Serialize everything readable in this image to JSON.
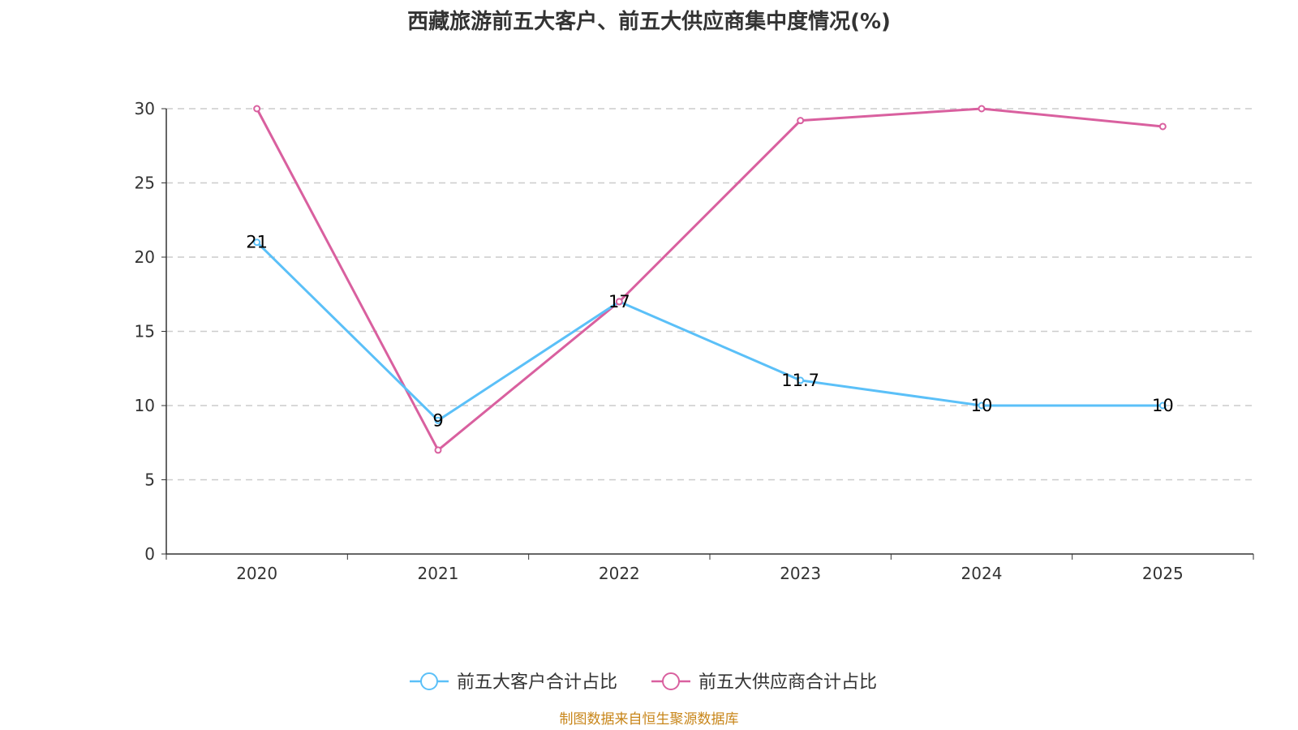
{
  "title": "西藏旅游前五大客户、前五大供应商集中度情况(%)",
  "source": "制图数据来自恒生聚源数据库",
  "chart_data": {
    "type": "line",
    "title": "西藏旅游前五大客户、前五大供应商集中度情况(%)",
    "categories": [
      "2020",
      "2021",
      "2022",
      "2023",
      "2024",
      "2025"
    ],
    "ylim": [
      0,
      30
    ],
    "yticks": [
      0,
      5,
      10,
      15,
      20,
      25,
      30
    ],
    "grid": true,
    "legend": "bottom",
    "series": [
      {
        "name": "前五大客户合计占比",
        "color": "#5bc0f8",
        "values": [
          21,
          9,
          17,
          11.7,
          10,
          10
        ],
        "labels": true
      },
      {
        "name": "前五大供应商合计占比",
        "color": "#d9609f",
        "values": [
          30,
          7,
          17,
          29.2,
          30,
          28.8
        ],
        "labels": false
      }
    ]
  }
}
